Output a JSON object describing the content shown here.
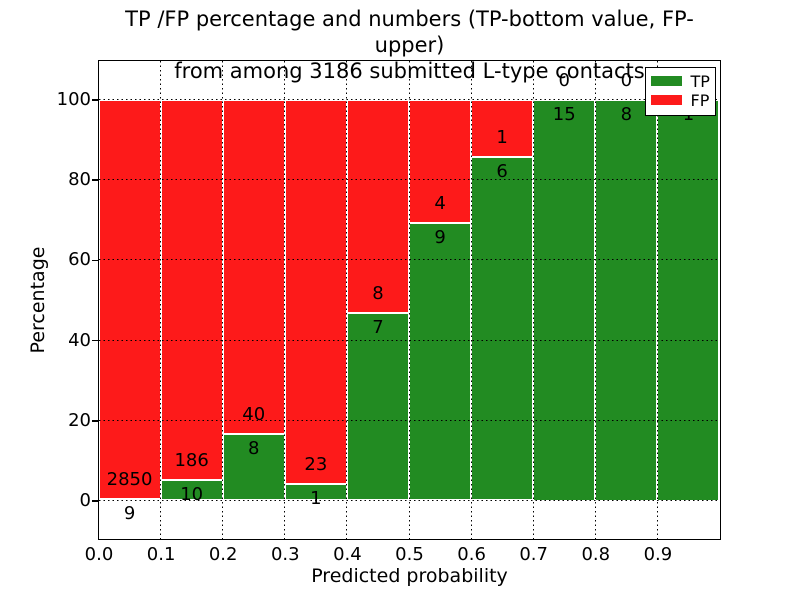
{
  "figure": {
    "title_line1": "TP /FP percentage and numbers (TP-bottom value, FP-upper)",
    "title_line2": "from among 3186 submitted L-type contacts",
    "xlabel": "Predicted probability",
    "ylabel": "Percentage"
  },
  "legend": {
    "items": [
      {
        "label": "TP",
        "color": "#228b22"
      },
      {
        "label": "FP",
        "color": "#fd1a1a"
      }
    ]
  },
  "chart_data": {
    "type": "bar",
    "stacked": true,
    "normalized": "percent_of_bin",
    "title": "TP /FP percentage and numbers (TP-bottom value, FP-upper)\nfrom among 3186 submitted L-type contacts",
    "xlabel": "Predicted probability",
    "ylabel": "Percentage",
    "total_contacts": 3186,
    "categories": [
      "0.0-0.1",
      "0.1-0.2",
      "0.2-0.3",
      "0.3-0.4",
      "0.4-0.5",
      "0.5-0.6",
      "0.6-0.7",
      "0.7-0.8",
      "0.8-0.9",
      "0.9-1.0"
    ],
    "series": [
      {
        "name": "TP",
        "counts": [
          9,
          10,
          8,
          1,
          7,
          9,
          6,
          15,
          8,
          1
        ],
        "color": "#228b22"
      },
      {
        "name": "FP",
        "counts": [
          2850,
          186,
          40,
          23,
          8,
          4,
          1,
          0,
          0,
          0
        ],
        "color": "#fd1a1a"
      }
    ],
    "tp_percent": [
      0.31,
      5.1,
      16.67,
      4.17,
      46.67,
      69.23,
      85.71,
      100.0,
      100.0,
      100.0
    ],
    "x_ticks": [
      "0.0",
      "0.1",
      "0.2",
      "0.3",
      "0.4",
      "0.5",
      "0.6",
      "0.7",
      "0.8",
      "0.9"
    ],
    "y_ticks": [
      0,
      20,
      40,
      60,
      80,
      100
    ],
    "xlim": [
      0.0,
      1.0
    ],
    "ylim": [
      -9.5,
      109.5
    ],
    "grid": "dotted",
    "legend_position": "upper right"
  }
}
